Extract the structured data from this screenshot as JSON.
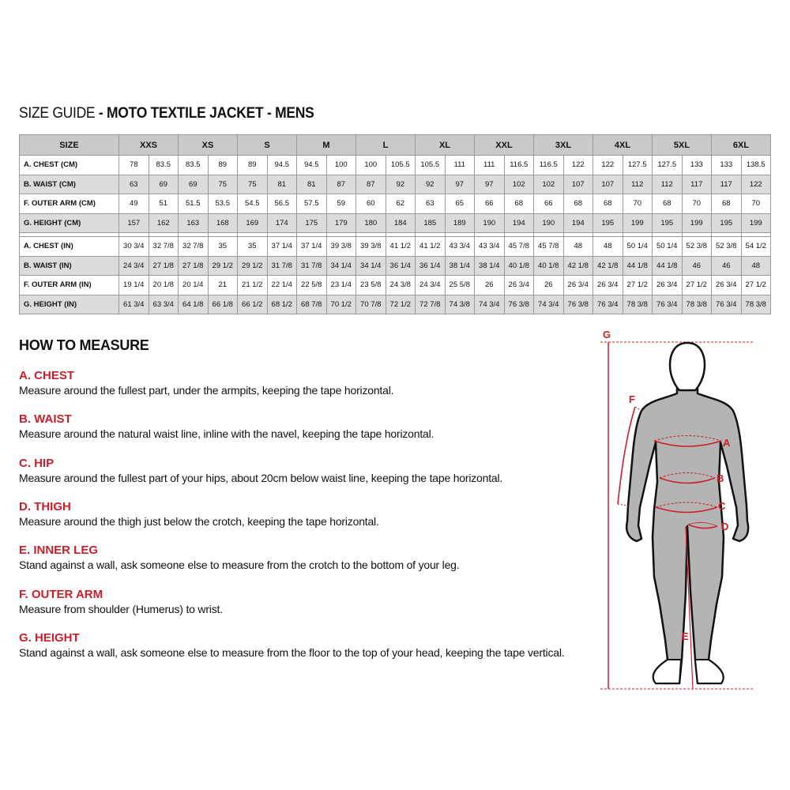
{
  "title": {
    "prefix": "SIZE GUIDE",
    "bold": " - MOTO TEXTILE JACKET - MENS"
  },
  "table": {
    "size_header": "SIZE",
    "sizes": [
      "XXS",
      "XS",
      "S",
      "M",
      "L",
      "XL",
      "XXL",
      "3XL",
      "4XL",
      "5XL",
      "6XL"
    ],
    "cm_rows": [
      {
        "label": "A. CHEST (CM)",
        "values": [
          "78",
          "83.5",
          "83.5",
          "89",
          "89",
          "94.5",
          "94.5",
          "100",
          "100",
          "105.5",
          "105.5",
          "111",
          "111",
          "116.5",
          "116.5",
          "122",
          "122",
          "127.5",
          "127.5",
          "133",
          "133",
          "138.5"
        ]
      },
      {
        "label": "B. WAIST (CM)",
        "values": [
          "63",
          "69",
          "69",
          "75",
          "75",
          "81",
          "81",
          "87",
          "87",
          "92",
          "92",
          "97",
          "97",
          "102",
          "102",
          "107",
          "107",
          "112",
          "112",
          "117",
          "117",
          "122"
        ]
      },
      {
        "label": "F. OUTER ARM (CM)",
        "values": [
          "49",
          "51",
          "51.5",
          "53.5",
          "54.5",
          "56.5",
          "57.5",
          "59",
          "60",
          "62",
          "63",
          "65",
          "66",
          "68",
          "66",
          "68",
          "68",
          "70",
          "68",
          "70",
          "68",
          "70"
        ]
      },
      {
        "label": "G. HEIGHT (CM)",
        "values": [
          "157",
          "162",
          "163",
          "168",
          "169",
          "174",
          "175",
          "179",
          "180",
          "184",
          "185",
          "189",
          "190",
          "194",
          "190",
          "194",
          "195",
          "199",
          "195",
          "199",
          "195",
          "199"
        ]
      }
    ],
    "in_rows": [
      {
        "label": "A. CHEST (IN)",
        "values": [
          "30 3/4",
          "32 7/8",
          "32 7/8",
          "35",
          "35",
          "37 1/4",
          "37 1/4",
          "39 3/8",
          "39 3/8",
          "41 1/2",
          "41 1/2",
          "43 3/4",
          "43 3/4",
          "45 7/8",
          "45 7/8",
          "48",
          "48",
          "50 1/4",
          "50 1/4",
          "52 3/8",
          "52 3/8",
          "54 1/2"
        ]
      },
      {
        "label": "B. WAIST (IN)",
        "values": [
          "24 3/4",
          "27 1/8",
          "27 1/8",
          "29 1/2",
          "29 1/2",
          "31 7/8",
          "31 7/8",
          "34 1/4",
          "34 1/4",
          "36 1/4",
          "36 1/4",
          "38 1/4",
          "38 1/4",
          "40 1/8",
          "40 1/8",
          "42 1/8",
          "42 1/8",
          "44 1/8",
          "44 1/8",
          "46",
          "46",
          "48"
        ]
      },
      {
        "label": "F. OUTER ARM (IN)",
        "values": [
          "19 1/4",
          "20 1/8",
          "20 1/4",
          "21",
          "21 1/2",
          "22 1/4",
          "22 5/8",
          "23 1/4",
          "23 5/8",
          "24 3/8",
          "24 3/4",
          "25 5/8",
          "26",
          "26 3/4",
          "26",
          "26 3/4",
          "26 3/4",
          "27 1/2",
          "26 3/4",
          "27 1/2",
          "26 3/4",
          "27 1/2"
        ]
      },
      {
        "label": "G. HEIGHT (IN)",
        "values": [
          "61 3/4",
          "63 3/4",
          "64 1/8",
          "66 1/8",
          "66 1/2",
          "68 1/2",
          "68 7/8",
          "70 1/2",
          "70 7/8",
          "72 1/2",
          "72 7/8",
          "74 3/8",
          "74 3/4",
          "76 3/8",
          "74 3/4",
          "76 3/8",
          "76 3/4",
          "78 3/8",
          "76 3/4",
          "78 3/8",
          "76 3/4",
          "78 3/8"
        ]
      }
    ]
  },
  "how_to_measure": {
    "heading": "HOW TO MEASURE",
    "items": [
      {
        "title": "A. CHEST",
        "text": "Measure around the fullest part, under the armpits, keeping the tape horizontal."
      },
      {
        "title": "B. WAIST",
        "text": "Measure around the natural waist line, inline with the navel, keeping the tape horizontal."
      },
      {
        "title": "C. HIP",
        "text": "Measure around the fullest part of your hips, about 20cm below waist line, keeping the tape horizontal."
      },
      {
        "title": "D. THIGH",
        "text": "Measure around the thigh just below the crotch, keeping the tape horizontal."
      },
      {
        "title": "E. INNER LEG",
        "text": "Stand against a wall, ask someone else to measure from the crotch to the bottom of your leg."
      },
      {
        "title": "F. OUTER ARM",
        "text": "Measure from shoulder (Humerus) to wrist."
      },
      {
        "title": "G. HEIGHT",
        "text": "Stand against a wall, ask someone else to measure from the floor to the top of your head, keeping the tape vertical."
      }
    ]
  },
  "figure": {
    "labels": {
      "a": "A",
      "b": "B",
      "c": "C",
      "d": "D",
      "e": "E",
      "f": "F",
      "g": "G"
    }
  },
  "colors": {
    "accent": "#c8202a",
    "header_bg": "#c9c9c9",
    "row_alt": "#dcdcdc",
    "body": "#b4b4b4"
  }
}
